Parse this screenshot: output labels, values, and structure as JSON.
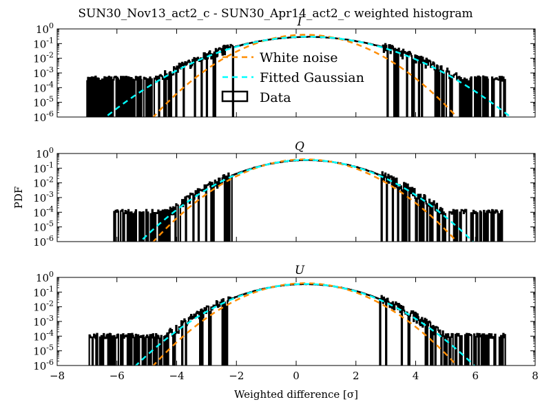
{
  "chart_data": {
    "type": "line",
    "title": "SUN30_Nov13_act2_c - SUN30_Apr14_act2_c weighted histogram",
    "xlabel": "Weighted difference [σ]",
    "ylabel": "PDF",
    "xlim": [
      -8,
      8
    ],
    "ylim": [
      1e-06,
      1
    ],
    "yscale": "log",
    "x_ticks": [
      "−8",
      "−6",
      "−4",
      "−2",
      "0",
      "2",
      "4",
      "6",
      "8"
    ],
    "y_ticks": [
      {
        "base": "10",
        "exp": "-6"
      },
      {
        "base": "10",
        "exp": "-5"
      },
      {
        "base": "10",
        "exp": "-4"
      },
      {
        "base": "10",
        "exp": "-3"
      },
      {
        "base": "10",
        "exp": "-2"
      },
      {
        "base": "10",
        "exp": "-1"
      },
      {
        "base": "10",
        "exp": "0"
      }
    ],
    "legend": {
      "placement": "upper-center (top panel)",
      "entries": [
        {
          "label": "White noise",
          "color": "#ff8c00",
          "style": "dashed"
        },
        {
          "label": "Fitted Gaussian",
          "color": "#00ffff",
          "style": "dashed"
        },
        {
          "label": "Data",
          "color": "#000000",
          "style": "box"
        }
      ]
    },
    "panels": [
      {
        "title": "I",
        "white_noise": {
          "mean": 0.3,
          "sigma": 1.0
        },
        "fitted_gaussian": {
          "mean": 0.4,
          "sigma": 1.35
        },
        "data_range": [
          -7.0,
          7.0
        ],
        "data_tail_level": 0.0004
      },
      {
        "title": "Q",
        "white_noise": {
          "mean": 0.3,
          "sigma": 1.0
        },
        "fitted_gaussian": {
          "mean": 0.35,
          "sigma": 1.1
        },
        "data_range": [
          -6.1,
          7.0
        ],
        "data_tail_level": 0.0001
      },
      {
        "title": "U",
        "white_noise": {
          "mean": 0.3,
          "sigma": 1.0
        },
        "fitted_gaussian": {
          "mean": 0.3,
          "sigma": 1.12
        },
        "data_range": [
          -7.0,
          7.0
        ],
        "data_tail_level": 0.0001
      }
    ]
  },
  "colors": {
    "white_noise": "#ff8c00",
    "fitted_gaussian": "#00ffff",
    "data": "#000000"
  }
}
